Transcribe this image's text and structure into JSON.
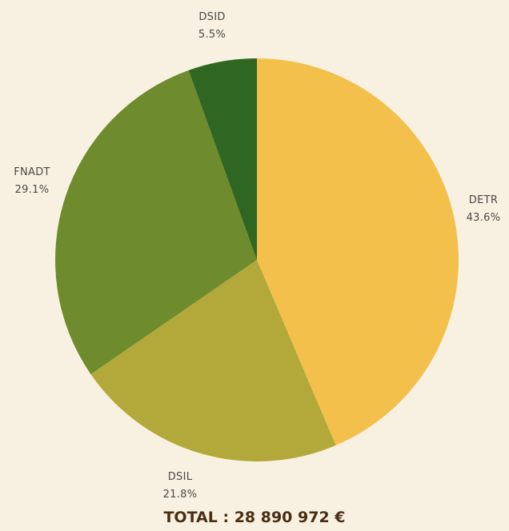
{
  "chart_data": {
    "type": "pie",
    "slices": [
      {
        "label": "DETR",
        "value": 43.6,
        "display": "43.6%",
        "color": "#f4c04c"
      },
      {
        "label": "DSIL",
        "value": 21.8,
        "display": "21.8%",
        "color": "#b2a93a"
      },
      {
        "label": "FNADT",
        "value": 29.1,
        "display": "29.1%",
        "color": "#6e8b2d"
      },
      {
        "label": "DSID",
        "value": 5.5,
        "display": "5.5%",
        "color": "#2f6622"
      }
    ],
    "start": "12 o'clock",
    "direction": "clockwise"
  },
  "total": {
    "text": "TOTAL : 28 890 972 €"
  },
  "colors": {
    "background": "#f8f1e1",
    "label_text": "#4a4a4a",
    "total_text": "#4a2e14"
  }
}
